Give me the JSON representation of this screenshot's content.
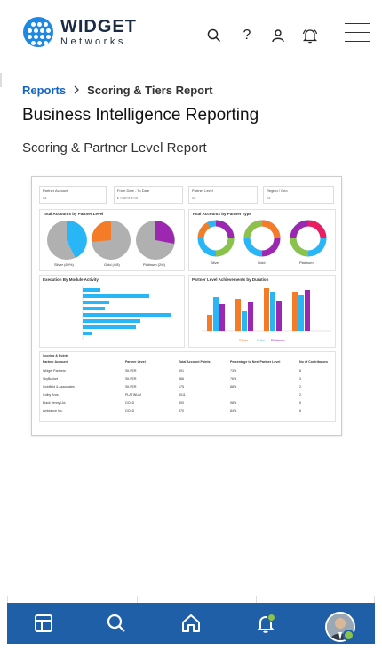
{
  "brand": {
    "name": "WIDGET",
    "tagline": "Networks",
    "color": "#1e88e5"
  },
  "header_icons": [
    "search-icon",
    "help-icon",
    "user-icon",
    "bell-icon",
    "menu-icon"
  ],
  "breadcrumb": {
    "link": "Reports",
    "current": "Scoring & Tiers Report"
  },
  "page": {
    "title": "Business Intelligence Reporting",
    "subtitle": "Scoring & Partner Level Report"
  },
  "report": {
    "filters": [
      {
        "label": "Partner Account",
        "value": "All"
      },
      {
        "label": "From Date - To Date",
        "value": "▸ Start ▸ End"
      },
      {
        "label": "Partner Level",
        "value": "All"
      },
      {
        "label": "Region / Geo",
        "value": "All"
      }
    ],
    "panels": {
      "accounts_by_level": {
        "title": "Total Accounts by Partner Level",
        "pies": [
          "Silver (69%)",
          "Gold (4/8)",
          "Platinum (2/6)"
        ]
      },
      "accounts_by_type": {
        "title": "Total Accounts by Partner Type",
        "donuts": [
          "Silver",
          "Gold",
          "Platinum"
        ]
      },
      "execution": {
        "title": "Execution By Module Activity",
        "bars": [
          "Certifications",
          "Incentive Promotion",
          "Partner Onboarding",
          "Deal Registration",
          "Lead Management",
          "Market Development",
          "Sales Enablement",
          "Training"
        ]
      },
      "achievements": {
        "title": "Partner Level Achievements by Duration",
        "legend": [
          "Silver",
          "Gold",
          "Platinum"
        ]
      }
    },
    "table": {
      "title": "Scoring & Points",
      "headers": [
        "Partner Account",
        "Partner Level",
        "Total Account Points",
        "Percentage to Next Partner Level",
        "No of Contributors"
      ],
      "rows": [
        [
          "Widget Partners",
          "SILVER",
          "491",
          "73%",
          "8"
        ],
        [
          "SkyBucket",
          "SILVER",
          "366",
          "76%",
          "3"
        ],
        [
          "Goldfield & Associates",
          "SILVER",
          "175",
          "88%",
          "2"
        ],
        [
          "Colby Bros.",
          "PLATINUM",
          "4011",
          "",
          "2"
        ],
        [
          "Black Jenny Ltd.",
          "GOLD",
          "800",
          "98%",
          "5"
        ],
        [
          "Ambiance Inc.",
          "GOLD",
          "870",
          "84%",
          "6"
        ]
      ]
    }
  },
  "bottom_nav": [
    "layout-icon",
    "search-icon",
    "home-icon",
    "bell-icon",
    "avatar"
  ]
}
